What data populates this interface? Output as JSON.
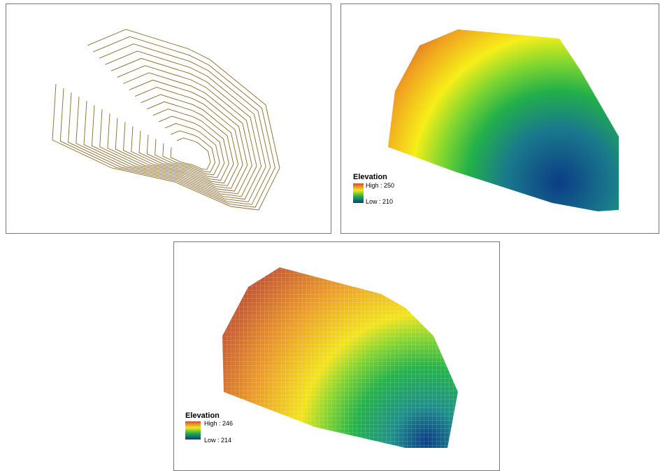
{
  "panels": [
    {
      "legend": {
        "title": "Elevation",
        "high": "High : 250",
        "low": "Low : 210"
      }
    },
    {
      "legend": {
        "title": "Elevation",
        "high": "High : 246",
        "low": "Low : 214"
      }
    }
  ]
}
